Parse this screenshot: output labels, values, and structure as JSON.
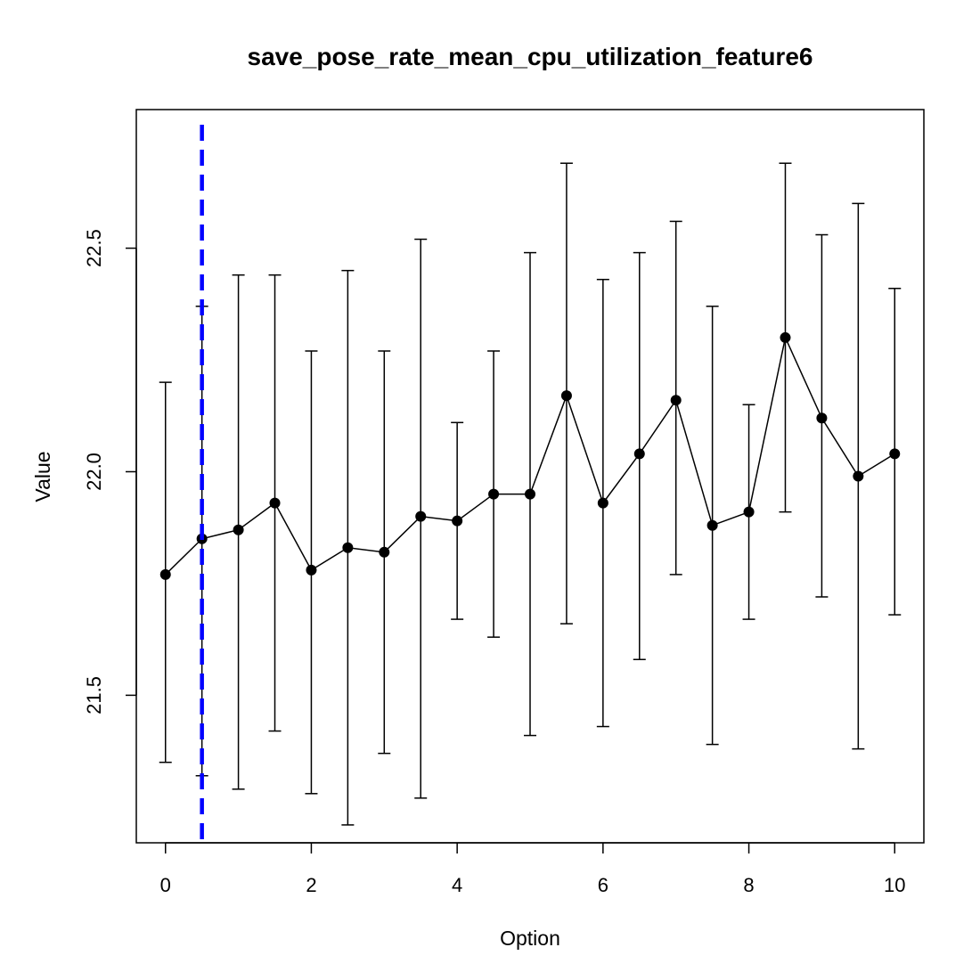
{
  "chart_data": {
    "type": "line",
    "title": "save_pose_rate_mean_cpu_utilization_feature6",
    "xlabel": "Option",
    "ylabel": "Value",
    "xlim": [
      -0.4,
      10.4
    ],
    "ylim": [
      21.17,
      22.81
    ],
    "x_ticks": [
      0,
      2,
      4,
      6,
      8,
      10
    ],
    "x_tick_labels": [
      "0",
      "2",
      "4",
      "6",
      "8",
      "10"
    ],
    "y_ticks": [
      21.5,
      22.0,
      22.5
    ],
    "y_tick_labels": [
      "21.5",
      "22.0",
      "22.5"
    ],
    "grid": false,
    "legend": "none",
    "series": [
      {
        "x": [
          0,
          0.5,
          1,
          1.5,
          2,
          2.5,
          3,
          3.5,
          4,
          4.5,
          5,
          5.5,
          6,
          6.5,
          7,
          7.5,
          8,
          8.5,
          9,
          9.5,
          10
        ],
        "values": [
          21.77,
          21.85,
          21.87,
          21.93,
          21.78,
          21.83,
          21.82,
          21.9,
          21.89,
          21.95,
          21.95,
          22.17,
          21.93,
          22.04,
          22.16,
          21.88,
          21.91,
          22.3,
          22.12,
          21.99,
          22.04
        ],
        "lower": [
          21.35,
          21.32,
          21.29,
          21.42,
          21.28,
          21.21,
          21.37,
          21.27,
          21.67,
          21.63,
          21.41,
          21.66,
          21.43,
          21.58,
          21.77,
          21.39,
          21.67,
          21.91,
          21.72,
          21.38,
          21.68
        ],
        "upper": [
          22.2,
          22.37,
          22.44,
          22.44,
          22.27,
          22.45,
          22.27,
          22.52,
          22.11,
          22.27,
          22.49,
          22.69,
          22.43,
          22.49,
          22.56,
          22.37,
          22.15,
          22.69,
          22.53,
          22.6,
          22.41
        ],
        "color": "#000000"
      }
    ],
    "reference_line": {
      "orientation": "vertical",
      "x": 0.5,
      "style": "dashed",
      "color": "#0000ff"
    }
  }
}
